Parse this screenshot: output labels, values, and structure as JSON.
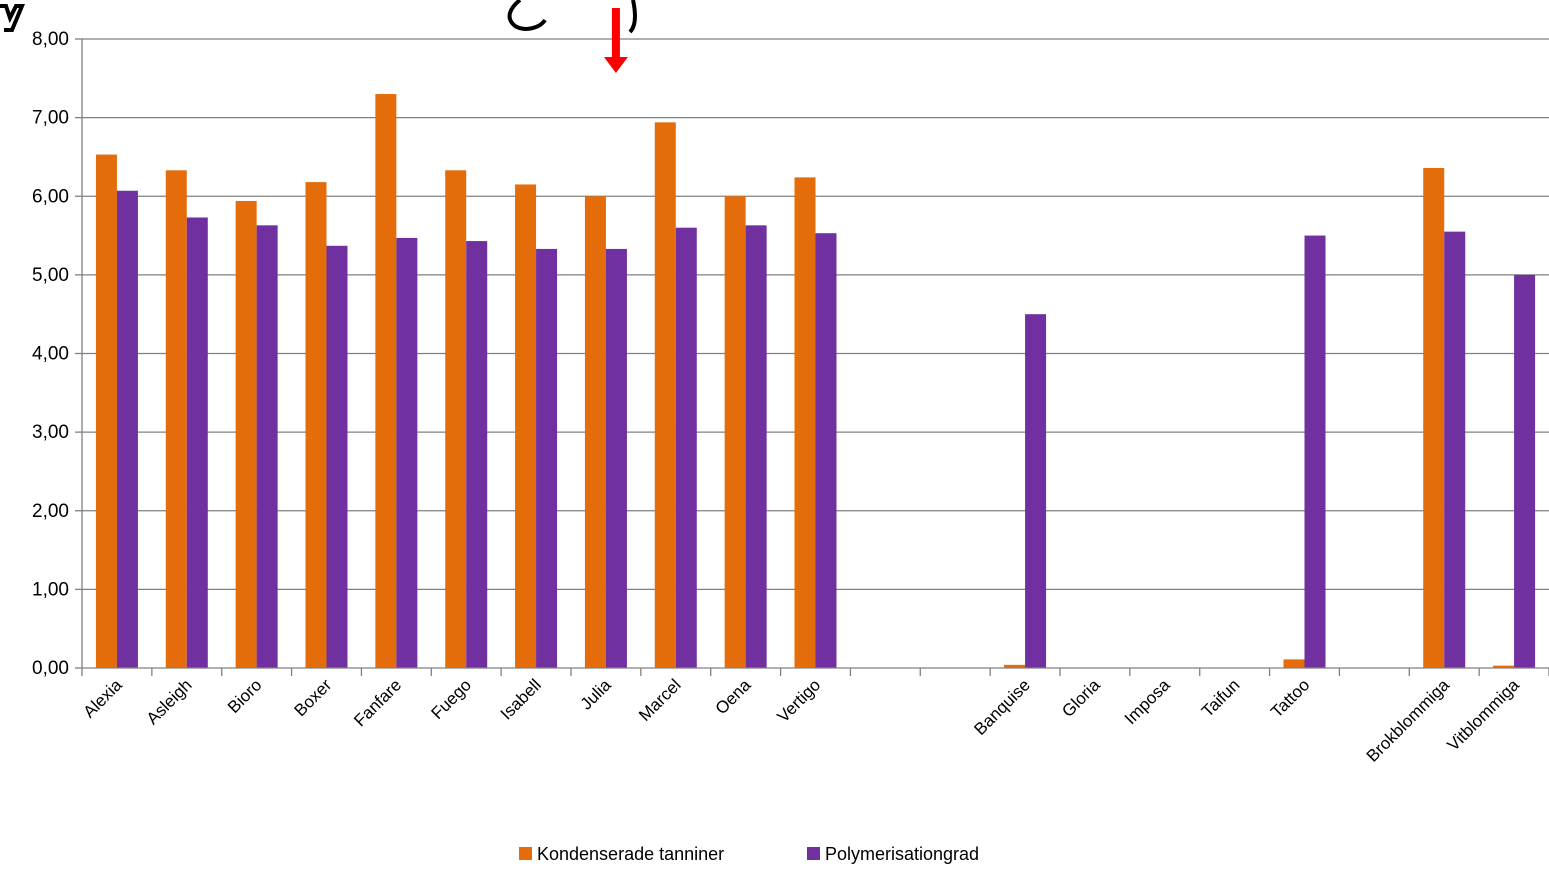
{
  "chart_data": {
    "type": "bar",
    "categories": [
      "Alexia",
      "Asleigh",
      "Bioro",
      "Boxer",
      "Fanfare",
      "Fuego",
      "Isabell",
      "Julia",
      "Marcel",
      "Oena",
      "Vertigo",
      "",
      "",
      "Banquise",
      "Gloria",
      "Imposa",
      "Taifun",
      "Tattoo",
      "",
      "Brokblommiga",
      "Vitblommiga"
    ],
    "series": [
      {
        "name": "Kondenserade tanniner",
        "color": "#E46C0A",
        "values": [
          6.53,
          6.33,
          5.94,
          6.18,
          7.3,
          6.33,
          6.15,
          6.0,
          6.94,
          6.0,
          6.24,
          null,
          null,
          0.04,
          null,
          null,
          null,
          0.11,
          null,
          6.36,
          0.03
        ]
      },
      {
        "name": "Polymerisationgrad",
        "color": "#7030A0",
        "values": [
          6.07,
          5.73,
          5.63,
          5.37,
          5.47,
          5.43,
          5.33,
          5.33,
          5.6,
          5.63,
          5.53,
          null,
          null,
          4.5,
          null,
          null,
          null,
          5.5,
          null,
          5.55,
          5.0
        ]
      }
    ],
    "y_ticks": [
      "0,00",
      "1,00",
      "2,00",
      "3,00",
      "4,00",
      "5,00",
      "6,00",
      "7,00",
      "8,00"
    ],
    "ylim": [
      0,
      8
    ],
    "grid": true,
    "legend_position": "bottom",
    "xlabel": "",
    "ylabel": "",
    "annotations": [
      {
        "type": "arrow",
        "color": "#FF0000",
        "points_to": "Julia"
      }
    ]
  }
}
